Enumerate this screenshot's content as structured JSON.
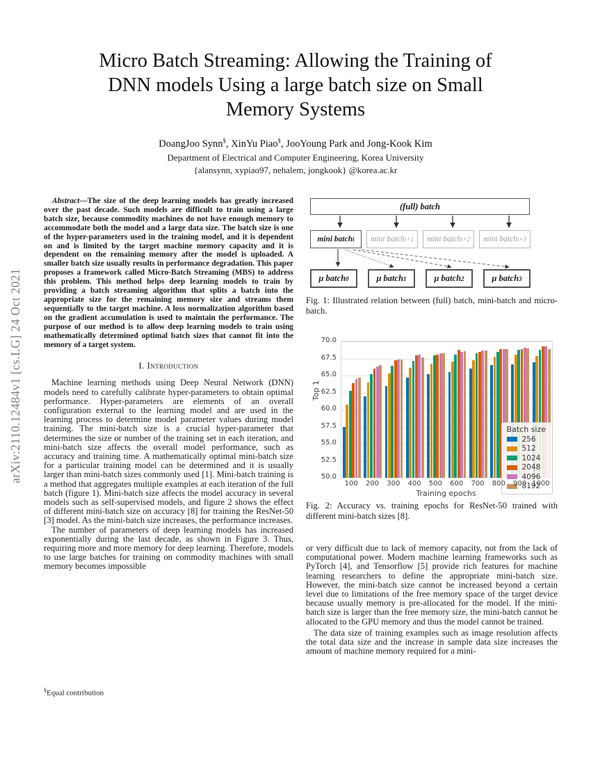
{
  "arxiv_label": "arXiv:2110.12484v1  [cs.LG]  24 Oct 2021",
  "header": {
    "title_lines": [
      "Micro Batch Streaming: Allowing the Training of",
      "DNN models Using a large batch size on Small",
      "Memory Systems"
    ],
    "authors": [
      {
        "name": "DoangJoo Synn",
        "sup": "§",
        "sep": ", "
      },
      {
        "name": "XinYu Piao",
        "sup": "§",
        "sep": ", "
      },
      {
        "name": "JooYoung Park",
        "sup": "",
        "sep": " and "
      },
      {
        "name": "Jong-Kook Kim",
        "sup": "",
        "sep": ""
      }
    ],
    "affiliation": "Department of Electrical and Computer Engineering, Korea University",
    "email": "{alansynn, xypiao97, nehalem, jongkook} @korea.ac.kr"
  },
  "abstract": {
    "lead": "Abstract",
    "dash": "—",
    "text": "The size of the deep learning models has greatly increased over the past decade. Such models are difficult to train using a large batch size, because commodity machines do not have enough memory to accommodate both the model and a large data size. The batch size is one of the hyper-parameters used in the training model, and it is dependent on and is limited by the target machine memory capacity and it is dependent on the remaining memory after the model is uploaded. A smaller batch size usually results in performance degradation. This paper proposes a framework called Micro-Batch Streaming (MBS) to address this problem. This method helps deep learning models to train by providing a batch streaming algorithm that splits a batch into the appropriate size for the remaining memory size and streams them sequentially to the target machine. A loss normalization algorithm based on the gradient accumulation is used to maintain the performance. The purpose of our method is to allow deep learning models to train using mathematically determined optimal batch sizes that cannot fit into the memory of a target system."
  },
  "sections": {
    "intro_number": "I.",
    "intro_title": "Introduction"
  },
  "left_column": {
    "para1": "Machine learning methods using Deep Neural Network (DNN) models need to carefully calibrate hyper-parameters to obtain optimal performance. Hyper-parameters are elements of an overall configuration external to the learning model and are used in the learning process to determine model parameter values during model training. The mini-batch size is a crucial hyper-parameter that determines the size or number of the training set in each iteration, and mini-batch size affects the overall model performance, such as accuracy and training time. A mathematically optimal mini-batch size for a particular training model can be determined and it is usually larger than mini-batch sizes commonly used [1]. Mini-batch training is a method that aggregates multiple examples at each iteration of the full batch (figure 1). Mini-batch size affects the model accuracy in several models such as self-supervised models, and figure 2 shows the effect of different mini-batch size on accuracy [8] for training the ResNet-50 [3] model. As the mini-batch size increases, the performance increases.",
    "para2": "The number of parameters of deep learning models has increased exponentially during the last decade, as shown in Figure 3. Thus, requiring more and more memory for deep learning. Therefore, models to use large batches for training on commodity machines with small memory becomes impossible"
  },
  "right_column": {
    "para1": "or very difficult due to lack of memory capacity, not from the lack of computational power. Modern machine learning frameworks such as PyTorch [4], and Tensorflow [5] provide rich features for machine learning researchers to define the appropriate mini-batch size. However, the mini-batch size cannot be increased beyond a certain level due to limitations of the free memory space of the target device because usually memory is pre-allocated for the model. If the mini-batch size is larger than the free memory size, the mini-batch cannot be allocated to the GPU memory and thus the model cannot be trained.",
    "para2": "The data size of training examples such as image resolution affects the total data size and the increase in sample data size increases the amount of machine memory required for a mini-"
  },
  "footnote": {
    "sup": "§",
    "text": "Equal contribution"
  },
  "figure1": {
    "full_label": "(full) batch",
    "mini_batches": [
      {
        "label": "mini batch",
        "sub": "i"
      },
      {
        "label": "mini batch",
        "sub": "i+1"
      },
      {
        "label": "mini batch",
        "sub": "i+2"
      },
      {
        "label": "mini batch",
        "sub": "i+3"
      }
    ],
    "micro_batches": [
      {
        "label": "μ batch",
        "sub": "0"
      },
      {
        "label": "μ batch",
        "sub": "1"
      },
      {
        "label": "μ batch",
        "sub": "2"
      },
      {
        "label": "μ batch",
        "sub": "3"
      }
    ],
    "caption": "Fig. 1: Illustrated relation between (full) batch, mini-batch and micro-batch."
  },
  "figure2": {
    "caption": "Fig. 2: Accuracy vs. training epochs for ResNet-50 trained with different mini-batch sizes [8]."
  },
  "chart_data": {
    "type": "bar",
    "title": "",
    "xlabel": "Training epochs",
    "ylabel": "Top 1",
    "ylim": [
      50.0,
      70.0
    ],
    "yticks": [
      50.0,
      52.5,
      55.0,
      57.5,
      60.0,
      62.5,
      65.0,
      67.5,
      70.0
    ],
    "grid": true,
    "legend_title": "Batch size",
    "legend_position": "lower right",
    "categories": [
      100,
      200,
      300,
      400,
      500,
      600,
      700,
      800,
      900,
      1000
    ],
    "series": [
      {
        "name": "256",
        "color": "#0173b2",
        "values": [
          57.5,
          61.9,
          63.5,
          64.7,
          65.2,
          65.5,
          66.0,
          66.5,
          66.6,
          66.9
        ]
      },
      {
        "name": "512",
        "color": "#de8f05",
        "values": [
          60.7,
          64.0,
          65.3,
          66.1,
          66.7,
          67.0,
          67.3,
          67.8,
          68.1,
          67.9
        ]
      },
      {
        "name": "1024",
        "color": "#029e73",
        "values": [
          62.8,
          65.2,
          66.4,
          67.1,
          68.0,
          68.1,
          68.3,
          68.5,
          68.8,
          68.8
        ]
      },
      {
        "name": "2048",
        "color": "#d55e00",
        "values": [
          63.9,
          66.0,
          67.2,
          68.0,
          68.1,
          68.8,
          68.5,
          68.9,
          68.9,
          69.3
        ]
      },
      {
        "name": "4096",
        "color": "#cc78bc",
        "values": [
          64.5,
          66.3,
          67.4,
          68.1,
          68.3,
          68.5,
          68.7,
          68.9,
          69.1,
          69.3
        ]
      },
      {
        "name": "8192",
        "color": "#ca9161",
        "values": [
          64.7,
          66.5,
          67.4,
          67.7,
          68.3,
          68.6,
          68.7,
          68.9,
          69.0,
          68.9
        ]
      }
    ]
  }
}
